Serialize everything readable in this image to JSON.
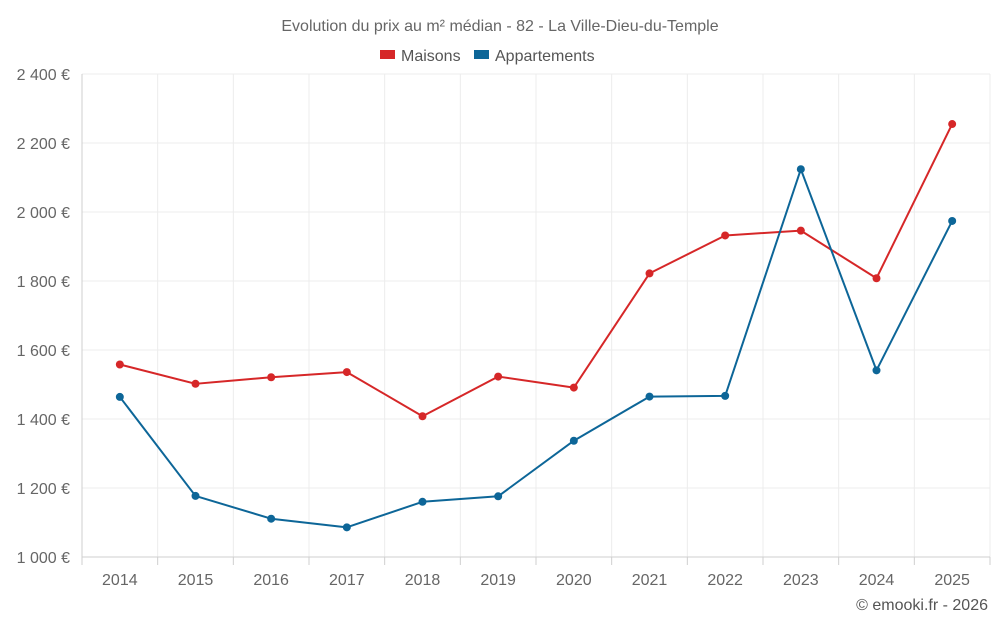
{
  "chart_data": {
    "type": "line",
    "title": "Evolution du prix au m² médian - 82 - La Ville-Dieu-du-Temple",
    "categories": [
      "2014",
      "2015",
      "2016",
      "2017",
      "2018",
      "2019",
      "2020",
      "2021",
      "2022",
      "2023",
      "2024",
      "2025"
    ],
    "series": [
      {
        "name": "Maisons",
        "color": "#d62728",
        "values": [
          1558,
          1502,
          1521,
          1536,
          1408,
          1523,
          1491,
          1822,
          1932,
          1946,
          1808,
          2255
        ]
      },
      {
        "name": "Appartements",
        "color": "#0d6698",
        "values": [
          1464,
          1177,
          1111,
          1086,
          1160,
          1176,
          1337,
          1465,
          1467,
          2124,
          1541,
          1974
        ]
      }
    ],
    "ylim": [
      1000,
      2400
    ],
    "yticks": [
      1000,
      1200,
      1400,
      1600,
      1800,
      2000,
      2200,
      2400
    ],
    "ytick_labels": [
      "1 000 €",
      "1 200 €",
      "1 400 €",
      "1 600 €",
      "1 800 €",
      "2 000 €",
      "2 200 €",
      "2 400 €"
    ],
    "xlabel": "",
    "ylabel": "",
    "grid": true,
    "legend_position": "top-center"
  },
  "credit": "© emooki.fr - 2026"
}
